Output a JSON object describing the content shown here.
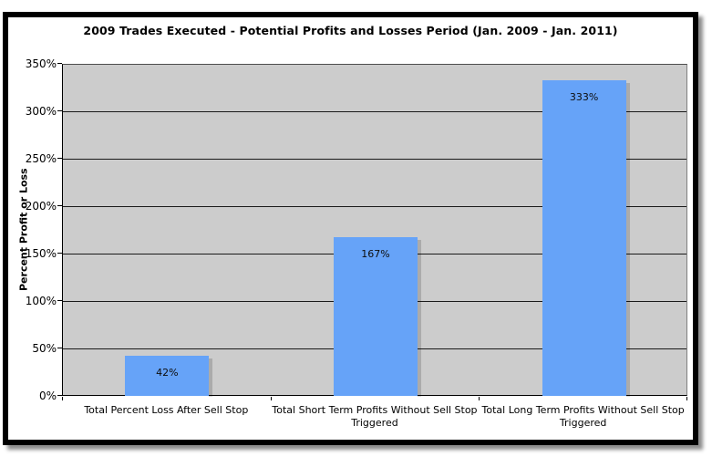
{
  "chart_data": {
    "type": "bar",
    "title": "2009 Trades Executed - Potential Profits and Losses Period (Jan. 2009 - Jan. 2011)",
    "ylabel": "Percent Profit or Loss",
    "xlabel": "",
    "categories": [
      "Total Percent Loss After Sell Stop",
      "Total Short Term Profits Without Sell Stop Triggered",
      "Total Long Term Profits Without Sell Stop Triggered"
    ],
    "values": [
      42,
      167,
      333
    ],
    "bar_labels": [
      "42%",
      "167%",
      "333%"
    ],
    "ylim": [
      0,
      350
    ],
    "ytick_step": 50,
    "yticks": [
      "0%",
      "50%",
      "100%",
      "150%",
      "200%",
      "250%",
      "300%",
      "350%"
    ],
    "grid": true,
    "legend": false,
    "colors": {
      "bar": "#66A3F8",
      "plot_bg": "#CCCCCC",
      "gridline": "#1a1a1a",
      "text": "#000000",
      "frame_border": "#000000"
    }
  }
}
